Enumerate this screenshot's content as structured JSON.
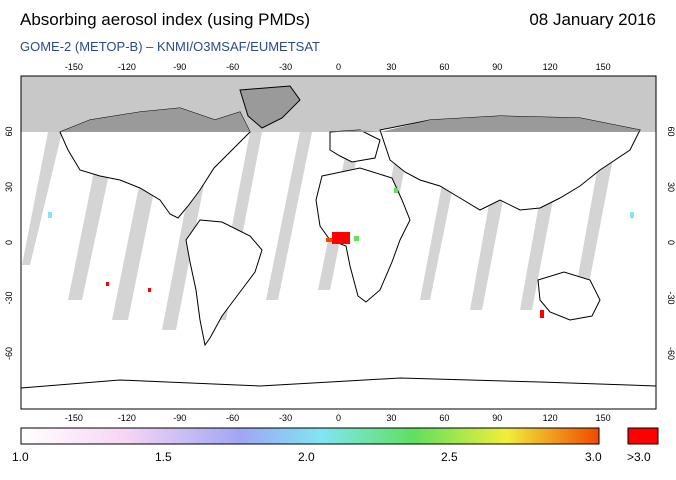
{
  "header": {
    "title": "Absorbing aerosol index (using PMDs)",
    "date": "08 January 2016",
    "subtitle": "GOME-2 (METOP-B)  –  KNMI/O3MSAF/EUMETSAT"
  },
  "map": {
    "lon_ticks": [
      "-150",
      "-120",
      "-90",
      "-60",
      "-30",
      "0",
      "30",
      "60",
      "90",
      "120",
      "150"
    ],
    "lat_ticks": [
      "60",
      "30",
      "0",
      "-30",
      "-60"
    ],
    "colors": {
      "polar_night": "#c8c8c8",
      "swath_gap": "#cfcfcf",
      "land": "#9a9a9a",
      "coast": "#000000"
    }
  },
  "colorbar": {
    "labels": [
      "1.0",
      "1.5",
      "2.0",
      "2.5",
      "3.0"
    ],
    "overflow_label": ">3.0",
    "colors": [
      "#ffffff",
      "#f6d6f2",
      "#9fa6f5",
      "#7fe6f2",
      "#5fe05f",
      "#f0ef3a",
      "#f04a00"
    ],
    "overflow_color": "#ff0000"
  }
}
